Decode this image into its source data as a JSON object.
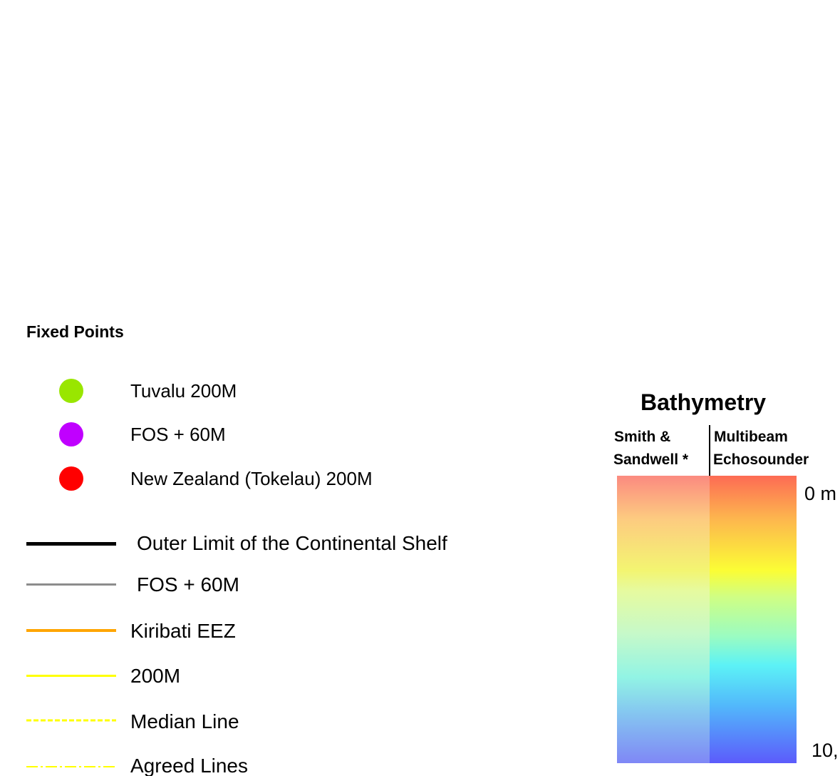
{
  "legend": {
    "title": "Fixed Points",
    "points": [
      {
        "label": "Tuvalu 200M",
        "color": "#99e600",
        "icon": "circle-icon"
      },
      {
        "label": "FOS + 60M",
        "color": "#c000ff",
        "icon": "circle-icon"
      },
      {
        "label": "New Zealand (Tokelau) 200M",
        "color": "#ff0000",
        "icon": "circle-icon"
      }
    ],
    "lines": [
      {
        "label": "Outer Limit of the Continental Shelf",
        "color": "#000000",
        "style": "solid"
      },
      {
        "label": "FOS + 60M",
        "color": "#8c8c8c",
        "style": "solid"
      },
      {
        "label": "Kiribati EEZ",
        "color": "#ffa500",
        "style": "solid"
      },
      {
        "label": "200M",
        "color": "#ffff00",
        "style": "solid"
      },
      {
        "label": "Median Line",
        "color": "#ffff00",
        "style": "dashed"
      },
      {
        "label": "Agreed Lines",
        "color": "#ffff00",
        "style": "dash-dot"
      }
    ]
  },
  "bathymetry": {
    "title": "Bathymetry",
    "columns": [
      {
        "line1": "Smith &",
        "line2": "Sandwell *"
      },
      {
        "line1": "Multibeam",
        "line2": "Echosounder"
      }
    ],
    "top_label": "0 m",
    "bottom_label": "10,"
  }
}
